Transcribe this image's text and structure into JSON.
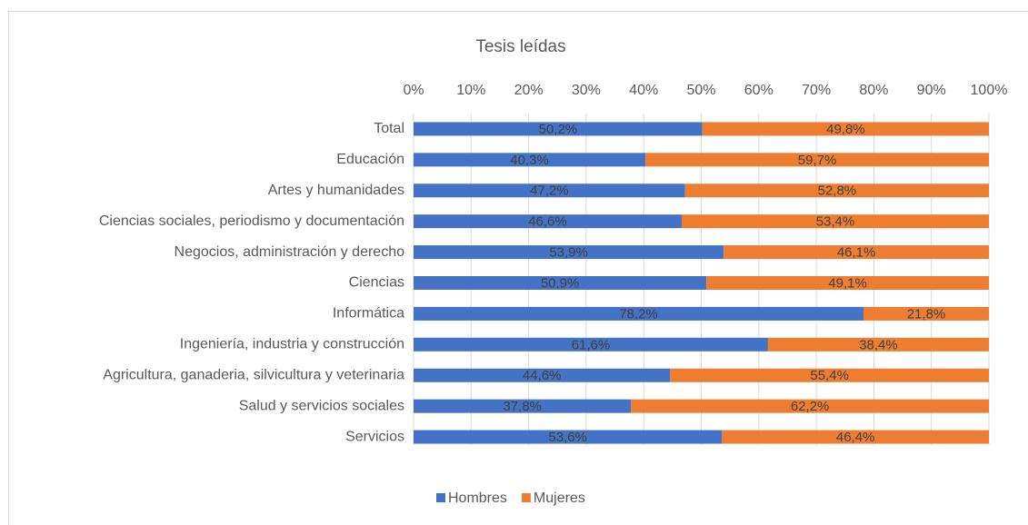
{
  "chart_data": {
    "type": "stacked_bar_horizontal",
    "title": "Tesis leídas",
    "categories": [
      "Total",
      "Educación",
      "Artes y humanidades",
      "Ciencias sociales, periodismo y documentación",
      "Negocios, administración y derecho",
      "Ciencias",
      "Informática",
      "Ingeniería, industria y construcción",
      "Agricultura, ganaderia, silvicultura y veterinaria",
      "Salud y servicios sociales",
      "Servicios"
    ],
    "series": [
      {
        "name": "Hombres",
        "color": "#4472c4",
        "values": [
          50.2,
          40.3,
          47.2,
          46.6,
          53.9,
          50.9,
          78.2,
          61.6,
          44.6,
          37.8,
          53.6
        ],
        "value_labels": [
          "50,2%",
          "40,3%",
          "47,2%",
          "46,6%",
          "53,9%",
          "50,9%",
          "78,2%",
          "61,6%",
          "44,6%",
          "37,8%",
          "53,6%"
        ]
      },
      {
        "name": "Mujeres",
        "color": "#ed7d31",
        "values": [
          49.8,
          59.7,
          52.8,
          53.4,
          46.1,
          49.1,
          21.8,
          38.4,
          55.4,
          62.2,
          46.4
        ],
        "value_labels": [
          "49,8%",
          "59,7%",
          "52,8%",
          "53,4%",
          "46,1%",
          "49,1%",
          "21,8%",
          "38,4%",
          "55,4%",
          "62,2%",
          "46,4%"
        ]
      }
    ],
    "xlim": [
      0,
      100
    ],
    "xticks": [
      {
        "value": 0,
        "label": "0%"
      },
      {
        "value": 10,
        "label": "10%"
      },
      {
        "value": 20,
        "label": "20%"
      },
      {
        "value": 30,
        "label": "30%"
      },
      {
        "value": 40,
        "label": "40%"
      },
      {
        "value": 50,
        "label": "50%"
      },
      {
        "value": 60,
        "label": "60%"
      },
      {
        "value": 70,
        "label": "70%"
      },
      {
        "value": 80,
        "label": "80%"
      },
      {
        "value": 90,
        "label": "90%"
      },
      {
        "value": 100,
        "label": "100%"
      }
    ],
    "grid": true,
    "legend": "bottom"
  }
}
